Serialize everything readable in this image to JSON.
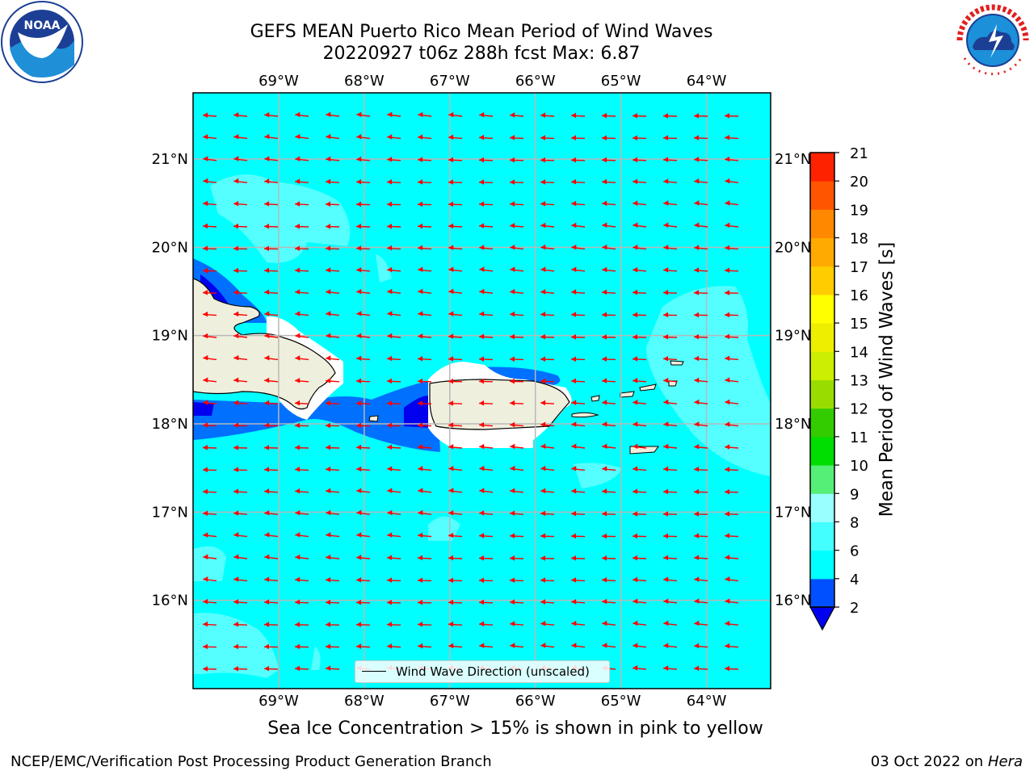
{
  "header": {
    "title_line1": "GEFS MEAN Puerto Rico Mean Period of Wind Waves",
    "title_line2": "20220927 t06z 288h fcst   Max: 6.87"
  },
  "map": {
    "lon_labels": [
      "69°W",
      "68°W",
      "67°W",
      "66°W",
      "65°W",
      "64°W"
    ],
    "lat_labels": [
      "21°N",
      "20°N",
      "19°N",
      "18°N",
      "17°N",
      "16°N"
    ],
    "lon_range": [
      -70.0,
      -63.25
    ],
    "lat_range": [
      15.0,
      21.75
    ],
    "background_color": "#00ffff",
    "land_color": "#efefdd",
    "arrow_color": "#ff0000",
    "legend_label": "Wind Wave Direction (unscaled)"
  },
  "colorbar": {
    "title": "Mean Period of Wind Waves [s]",
    "tick_labels": [
      "2",
      "4",
      "6",
      "8",
      "9",
      "10",
      "11",
      "12",
      "13",
      "14",
      "15",
      "16",
      "17",
      "18",
      "19",
      "20",
      "21"
    ],
    "colors": [
      "#0050ff",
      "#00ffff",
      "#44ffff",
      "#99ffff",
      "#55ee77",
      "#00dd00",
      "#33cc00",
      "#99dd00",
      "#ccee00",
      "#eeee00",
      "#ffff00",
      "#ffcc00",
      "#ffaa00",
      "#ff8800",
      "#ff5500",
      "#ff2200"
    ],
    "under_color": "#0000ee"
  },
  "subtitle": "Sea Ice Concentration > 15% is shown in pink to yellow",
  "footer": {
    "left": "NCEP/EMC/Verification Post Processing Product Generation Branch",
    "right_prefix": "03 Oct 2022 on ",
    "right_host": "Hera"
  }
}
